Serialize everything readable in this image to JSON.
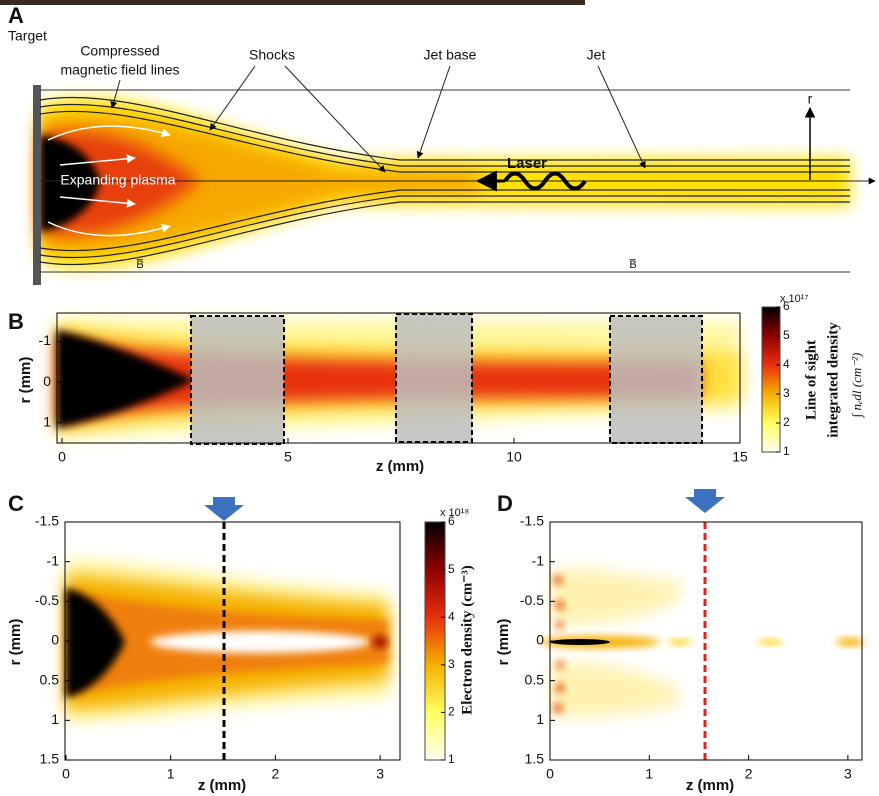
{
  "panel_a": {
    "label": "A",
    "target": "Target",
    "field_lines": [
      "Compressed",
      "magnetic field lines"
    ],
    "shocks": "Shocks",
    "jet_base": "Jet base",
    "jet": "Jet",
    "plasma": "Expanding plasma",
    "laser": "Laser",
    "r_axis": "r",
    "b_left": "B̅",
    "b_right": "B̅"
  },
  "panel_b": {
    "label": "B",
    "xlabel": "z (mm)",
    "ylabel": "r (mm)",
    "xlim": [
      0,
      15
    ],
    "xticks": [
      0,
      5,
      10,
      15
    ],
    "ylim": [
      -1.7,
      1.5
    ],
    "yticks": [
      -1,
      0,
      1
    ],
    "colorbar": {
      "title": [
        "Line of sight",
        "integrated density"
      ],
      "unit": "∫ nₑdl (cm⁻²)",
      "exponent": "x 10¹⁷",
      "lim": [
        1,
        6
      ],
      "ticks": [
        1,
        2,
        3,
        4,
        5,
        6
      ]
    }
  },
  "panel_c": {
    "label": "C",
    "xlabel": "z (mm)",
    "ylabel": "r (mm)",
    "xlim": [
      0,
      3.3
    ],
    "xticks": [
      0,
      1,
      2,
      3
    ],
    "ylim": [
      -1.5,
      1.5
    ],
    "yticks": [
      -1.5,
      -1,
      -0.5,
      0,
      0.5,
      1,
      1.5
    ],
    "colorbar": {
      "title": "Electron density (cm⁻³)",
      "exponent": "x 10¹⁸",
      "lim": [
        1,
        6
      ],
      "ticks": [
        1,
        2,
        3,
        4,
        5,
        6
      ]
    }
  },
  "panel_d": {
    "label": "D",
    "xlabel": "z (mm)",
    "ylabel": "r (mm)",
    "xlim": [
      0,
      3.1
    ],
    "xticks": [
      0,
      1,
      2,
      3
    ],
    "ylim": [
      -1.5,
      1.5
    ],
    "yticks": [
      -1.5,
      -1,
      -0.5,
      0,
      0.5,
      1,
      1.5
    ]
  }
}
